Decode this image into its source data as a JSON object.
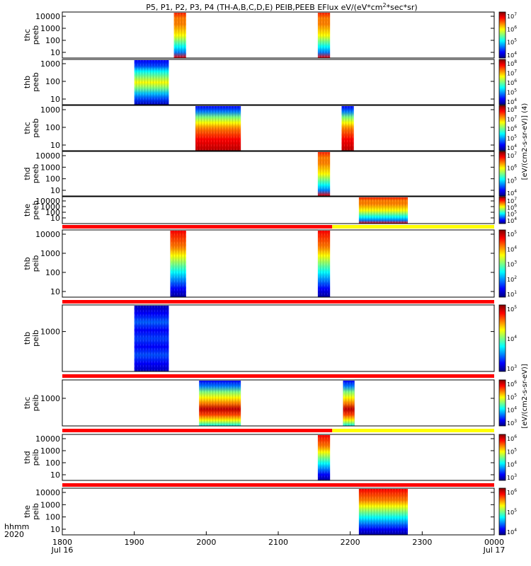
{
  "chart_data": {
    "type": "heatmap",
    "title": "P5, P1, P2, P3, P4 (TH-A,B,C,D,E) PEIB,PEEB EFlux eV/(eV*cm^2*sec*sr)",
    "title_super": "2",
    "title_pre": "P5, P1, P2, P3, P4 (TH-A,B,C,D,E) PEIB,PEEB EFlux eV/(eV*cm",
    "title_post": "*sec*sr)",
    "colorbar_label_eeb": "[eV/(cm2-s-sr-eV)] (4)",
    "colorbar_label_ieb": "[eV/(cm2-s-sr-eV)]",
    "x_axis": {
      "ticks": [
        "1800",
        "1900",
        "2000",
        "2100",
        "2200",
        "2300",
        "0000"
      ],
      "date_labels": [
        {
          "at": "1800",
          "label": "Jul 16"
        },
        {
          "at": "0000",
          "label": "Jul 17"
        }
      ],
      "corner_label_line1": "hhmm",
      "corner_label_line2": "2020",
      "range": [
        "18:00",
        "24:00"
      ]
    },
    "panels": [
      {
        "probe": "thc",
        "product": "peeb",
        "yscale": "log",
        "yticks": [
          "10",
          "100",
          "1000",
          "10000"
        ],
        "cbar": {
          "min_exp": 4,
          "max_exp": 7
        },
        "blocks": [
          {
            "t0": 19.55,
            "t1": 19.72,
            "kind": "eeb_high"
          },
          {
            "t0": 21.55,
            "t1": 21.72,
            "kind": "eeb_high"
          }
        ]
      },
      {
        "probe": "thb",
        "product": "peeb",
        "yscale": "log",
        "yticks": [
          "10",
          "100",
          "1000"
        ],
        "cbar": {
          "min_exp": 4,
          "max_exp": 8
        },
        "blocks": [
          {
            "t0": 19.0,
            "t1": 19.48,
            "kind": "eeb_cold"
          }
        ]
      },
      {
        "probe": "thc",
        "product": "peeb",
        "yscale": "log",
        "yticks": [
          "10",
          "100",
          "1000"
        ],
        "cbar": {
          "min_exp": 4,
          "max_exp": 8
        },
        "blocks": [
          {
            "t0": 19.85,
            "t1": 20.48,
            "kind": "eeb_low"
          },
          {
            "t0": 21.88,
            "t1": 22.05,
            "kind": "eeb_low"
          }
        ]
      },
      {
        "probe": "thd",
        "product": "peeb",
        "yscale": "log",
        "yticks": [
          "10",
          "100",
          "1000",
          "10000"
        ],
        "cbar": {
          "min_exp": 4,
          "max_exp": 7
        },
        "blocks": [
          {
            "t0": 21.55,
            "t1": 21.72,
            "kind": "eeb_high"
          }
        ]
      },
      {
        "probe": "the",
        "product": "peeb",
        "yscale": "log",
        "yticks": [
          "10",
          "100",
          "1000",
          "10000"
        ],
        "cbar": {
          "min_exp": 4,
          "max_exp": 7
        },
        "blocks": [
          {
            "t0": 22.12,
            "t1": 22.8,
            "kind": "eeb_high"
          }
        ]
      },
      {
        "probe": "thb",
        "product": "peib",
        "yscale": "log",
        "yticks": [
          "10",
          "100",
          "1000",
          "10000"
        ],
        "cbar": {
          "min_exp": 1,
          "max_exp": 5
        },
        "flag_bar": [
          {
            "t0": 18.0,
            "t1": 21.75,
            "color": "red"
          },
          {
            "t0": 21.75,
            "t1": 24.0,
            "color": "yellow"
          }
        ],
        "blocks": [
          {
            "t0": 19.5,
            "t1": 19.72,
            "kind": "ieb"
          },
          {
            "t0": 21.55,
            "t1": 21.72,
            "kind": "ieb"
          }
        ]
      },
      {
        "probe": "thb",
        "product": "peib",
        "yscale": "log",
        "yticks": [
          "1000"
        ],
        "cbar": {
          "min_exp": 3,
          "max_exp": 5
        },
        "flag_bar": [
          {
            "t0": 18.0,
            "t1": 24.0,
            "color": "red"
          }
        ],
        "blocks": [
          {
            "t0": 19.0,
            "t1": 19.48,
            "kind": "ieb_low"
          }
        ]
      },
      {
        "probe": "thc",
        "product": "peib",
        "yscale": "log",
        "yticks": [
          "1000"
        ],
        "cbar": {
          "min_exp": 3,
          "max_exp": 6
        },
        "flag_bar": [
          {
            "t0": 18.0,
            "t1": 24.0,
            "color": "red"
          }
        ],
        "blocks": [
          {
            "t0": 19.9,
            "t1": 20.48,
            "kind": "ieb_mid"
          },
          {
            "t0": 21.9,
            "t1": 22.06,
            "kind": "ieb_mid"
          }
        ]
      },
      {
        "probe": "thd",
        "product": "peib",
        "yscale": "log",
        "yticks": [
          "10",
          "100",
          "1000",
          "10000"
        ],
        "cbar": {
          "min_exp": 3,
          "max_exp": 6
        },
        "flag_bar": [
          {
            "t0": 18.0,
            "t1": 21.75,
            "color": "red"
          },
          {
            "t0": 21.75,
            "t1": 24.0,
            "color": "yellow"
          }
        ],
        "blocks": [
          {
            "t0": 21.55,
            "t1": 21.72,
            "kind": "ieb"
          }
        ]
      },
      {
        "probe": "the",
        "product": "peib",
        "yscale": "log",
        "yticks": [
          "10",
          "100",
          "1000",
          "10000"
        ],
        "cbar": {
          "min_exp": 4,
          "max_exp": 6
        },
        "flag_bar": [
          {
            "t0": 18.0,
            "t1": 24.0,
            "color": "red"
          }
        ],
        "blocks": [
          {
            "t0": 22.12,
            "t1": 22.8,
            "kind": "ieb"
          }
        ]
      }
    ]
  }
}
